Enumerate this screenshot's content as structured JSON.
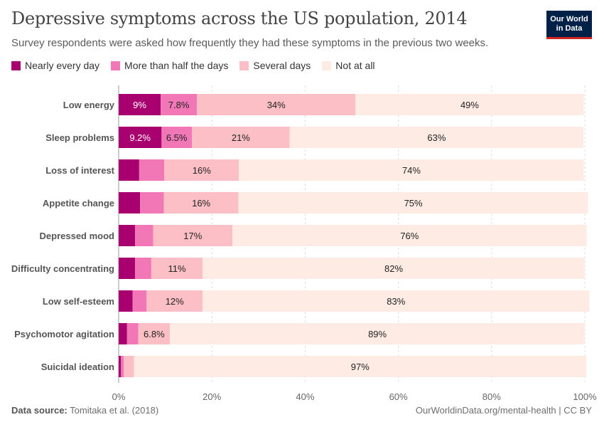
{
  "title": "Depressive symptoms across the US population, 2014",
  "subtitle": "Survey respondents were asked how frequently they had these symptoms in the previous two weeks.",
  "logo": {
    "line1": "Our World",
    "line2": "in Data"
  },
  "footer": {
    "source_label": "Data source:",
    "source_value": "Tomitaka et al. (2018)",
    "right": "OurWorldinData.org/mental-health | CC BY"
  },
  "chart_data": {
    "type": "bar",
    "orientation": "horizontal",
    "stacked": true,
    "categories": [
      "Low energy",
      "Sleep problems",
      "Loss of interest",
      "Appetite change",
      "Depressed mood",
      "Difficulty concentrating",
      "Low self-esteem",
      "Psychomotor agitation",
      "Suicidal ideation"
    ],
    "series": [
      {
        "name": "Nearly every day",
        "color": "#a8006e",
        "values": [
          9,
          9.2,
          4.4,
          4.6,
          3.5,
          3.5,
          3,
          1.8,
          0.5
        ],
        "labels": [
          "9%",
          "9.2%",
          "",
          "",
          "",
          "",
          "",
          "",
          ""
        ]
      },
      {
        "name": "More than half the days",
        "color": "#f277b7",
        "values": [
          7.8,
          6.5,
          5.4,
          5.1,
          3.9,
          3.5,
          3,
          2.4,
          0.6
        ],
        "labels": [
          "7.8%",
          "6.5%",
          "",
          "",
          "",
          "",
          "",
          "",
          ""
        ]
      },
      {
        "name": "Several days",
        "color": "#fbbfc5",
        "values": [
          34,
          21,
          16,
          16,
          17,
          11,
          12,
          6.8,
          2.2
        ],
        "labels": [
          "34%",
          "21%",
          "16%",
          "16%",
          "17%",
          "11%",
          "12%",
          "6.8%",
          ""
        ]
      },
      {
        "name": "Not at all",
        "color": "#fdebe4",
        "values": [
          49,
          63,
          74,
          75,
          76,
          82,
          83,
          89,
          97
        ],
        "labels": [
          "49%",
          "63%",
          "74%",
          "75%",
          "76%",
          "82%",
          "83%",
          "89%",
          "97%"
        ]
      }
    ],
    "xlim": [
      0,
      100
    ],
    "xticks": [
      "0%",
      "20%",
      "40%",
      "60%",
      "80%",
      "100%"
    ],
    "grid": true,
    "legend": "top-left"
  }
}
